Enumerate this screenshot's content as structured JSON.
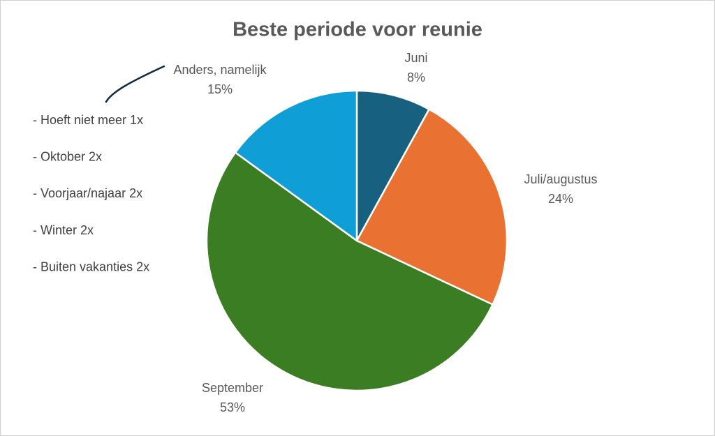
{
  "chart_data": {
    "type": "pie",
    "title": "Beste periode voor reunie",
    "categories": [
      "Juni",
      "Juli/augustus",
      "September",
      "Anders, namelijk"
    ],
    "values": [
      8,
      24,
      53,
      15
    ],
    "value_labels": [
      "8%",
      "24%",
      "53%",
      "15%"
    ],
    "colors": [
      "#17607f",
      "#e97132",
      "#3b7d23",
      "#0f9ed5"
    ],
    "annotations": [
      "- Hoeft niet meer 1x",
      "- Oktober 2x",
      "- Voorjaar/najaar 2x",
      "- Winter 2x",
      "- Buiten vakanties 2x"
    ]
  }
}
